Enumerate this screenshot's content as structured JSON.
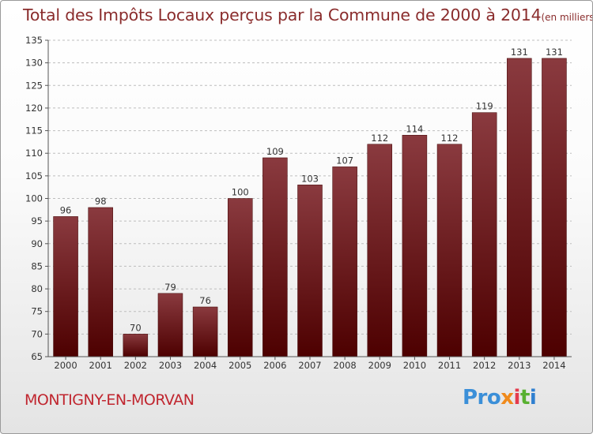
{
  "title": "Total des Impôts Locaux perçus par la Commune de 2000 à 2014",
  "title_unit": "(en milliers d'€)",
  "commune": "MONTIGNY-EN-MORVAN",
  "logo": {
    "part1": "Pro",
    "part2": "x",
    "part3": "i",
    "part4": "t",
    "part5": "i"
  },
  "colors": {
    "bar_top": "#8a3a3f",
    "bar_bottom": "#4d0000",
    "title": "#8a2c2c",
    "commune": "#c0262f"
  },
  "chart_data": {
    "type": "bar",
    "title": "Total des Impôts Locaux perçus par la Commune de 2000 à 2014",
    "xlabel": "",
    "ylabel": "",
    "categories": [
      "2000",
      "2001",
      "2002",
      "2003",
      "2004",
      "2005",
      "2006",
      "2007",
      "2008",
      "2009",
      "2010",
      "2011",
      "2012",
      "2013",
      "2014"
    ],
    "values": [
      96,
      98,
      70,
      79,
      76,
      100,
      109,
      103,
      107,
      112,
      114,
      112,
      119,
      131,
      131
    ],
    "ylim": [
      65,
      135
    ],
    "yticks": [
      65,
      70,
      75,
      80,
      85,
      90,
      95,
      100,
      105,
      110,
      115,
      120,
      125,
      130,
      135
    ],
    "grid": "horizontal-dashed"
  }
}
